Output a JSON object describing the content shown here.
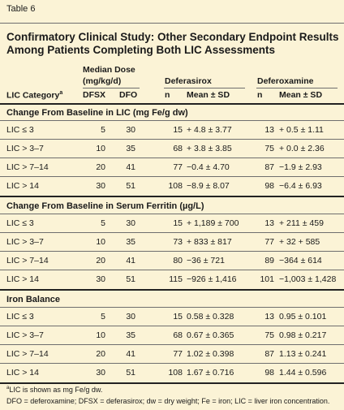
{
  "table_label": "Table 6",
  "title": "Confirmatory Clinical Study: Other Secondary Endpoint Results Among Patients Completing Both LIC Assessments",
  "header": {
    "median_dose": "Median Dose",
    "median_dose_unit": "(mg/kg/d)",
    "deferasirox": "Deferasirox",
    "deferoxamine": "Deferoxamine",
    "lic_category": "LIC Category",
    "lic_category_sup": "a",
    "dfsx": "DFSX",
    "dfo": "DFO",
    "n1": "n",
    "mean1": "Mean ± SD",
    "n2": "n",
    "mean2": "Mean ± SD"
  },
  "sections": [
    {
      "title": "Change From Baseline in LIC (mg Fe/g dw)",
      "rows": [
        {
          "cat": "LIC ≤ 3",
          "dfsx": "5",
          "dfo": "30",
          "n1": "15",
          "m1": "+ 4.8 ± 3.77",
          "n2": "13",
          "m2": "+ 0.5 ± 1.11"
        },
        {
          "cat": "LIC > 3–7",
          "dfsx": "10",
          "dfo": "35",
          "n1": "68",
          "m1": "+ 3.8 ± 3.85",
          "n2": "75",
          "m2": "+ 0.0 ± 2.36"
        },
        {
          "cat": "LIC > 7–14",
          "dfsx": "20",
          "dfo": "41",
          "n1": "77",
          "m1": "−0.4 ± 4.70",
          "n2": "87",
          "m2": "−1.9 ± 2.93"
        },
        {
          "cat": "LIC > 14",
          "dfsx": "30",
          "dfo": "51",
          "n1": "108",
          "m1": "−8.9 ± 8.07",
          "n2": "98",
          "m2": "−6.4 ± 6.93"
        }
      ]
    },
    {
      "title": "Change From Baseline in Serum Ferritin (µg/L)",
      "rows": [
        {
          "cat": "LIC ≤ 3",
          "dfsx": "5",
          "dfo": "30",
          "n1": "15",
          "m1": "+ 1,189 ± 700",
          "n2": "13",
          "m2": "+ 211 ± 459"
        },
        {
          "cat": "LIC > 3–7",
          "dfsx": "10",
          "dfo": "35",
          "n1": "73",
          "m1": "+ 833 ± 817",
          "n2": "77",
          "m2": "+ 32 + 585"
        },
        {
          "cat": "LIC > 7–14",
          "dfsx": "20",
          "dfo": "41",
          "n1": "80",
          "m1": "−36 ± 721",
          "n2": "89",
          "m2": "−364 ± 614"
        },
        {
          "cat": "LIC > 14",
          "dfsx": "30",
          "dfo": "51",
          "n1": "115",
          "m1": "−926 ± 1,416",
          "n2": "101",
          "m2": "−1,003 ± 1,428"
        }
      ]
    },
    {
      "title": "Iron Balance",
      "rows": [
        {
          "cat": "LIC ≤ 3",
          "dfsx": "5",
          "dfo": "30",
          "n1": "15",
          "m1": "0.58 ± 0.328",
          "n2": "13",
          "m2": "0.95 ± 0.101"
        },
        {
          "cat": "LIC > 3–7",
          "dfsx": "10",
          "dfo": "35",
          "n1": "68",
          "m1": "0.67 ± 0.365",
          "n2": "75",
          "m2": "0.98 ± 0.217"
        },
        {
          "cat": "LIC > 7–14",
          "dfsx": "20",
          "dfo": "41",
          "n1": "77",
          "m1": "1.02 ± 0.398",
          "n2": "87",
          "m2": "1.13 ± 0.241"
        },
        {
          "cat": "LIC > 14",
          "dfsx": "30",
          "dfo": "51",
          "n1": "108",
          "m1": "1.67 ± 0.716",
          "n2": "98",
          "m2": "1.44 ± 0.596"
        }
      ]
    }
  ],
  "footnotes": {
    "a_marker": "a",
    "a_text": "LIC is shown as mg Fe/g dw.",
    "abbrev": "DFO = deferoxamine; DFSX = deferasirox; dw = dry weight; Fe = iron; LIC = liver iron concentration."
  }
}
